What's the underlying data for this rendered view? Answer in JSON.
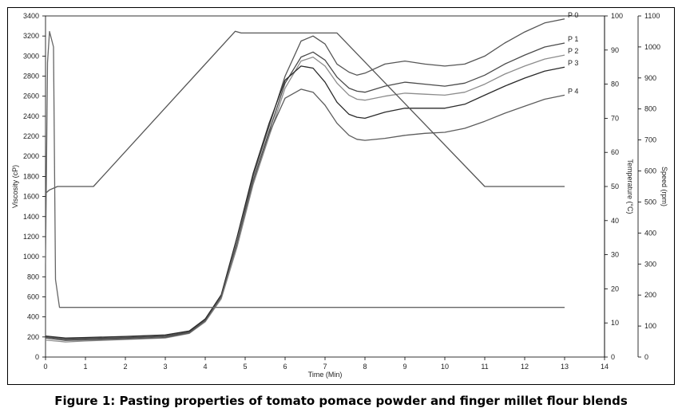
{
  "figure": {
    "caption": "Figure 1: Pasting properties of tomato pomace powder and finger millet flour blends"
  },
  "chart_data": {
    "type": "line",
    "xlabel": "Time (Min)",
    "ylabel": "Viscosity (cP)",
    "ylabel_temp": "Temperature (°C)",
    "ylabel_speed": "Speed (rpm)",
    "xlim": [
      0,
      14
    ],
    "ylim": [
      0,
      3400
    ],
    "ylim_temp": [
      0,
      100
    ],
    "ylim_speed": [
      0,
      1100
    ],
    "x_ticks": [
      0,
      1,
      2,
      3,
      4,
      5,
      6,
      7,
      8,
      9,
      10,
      11,
      12,
      13,
      14
    ],
    "y_ticks": [
      0,
      200,
      400,
      600,
      800,
      1000,
      1200,
      1400,
      1600,
      1800,
      2000,
      2200,
      2400,
      2600,
      2800,
      3000,
      3200,
      3400
    ],
    "temp_ticks": [
      0,
      10,
      20,
      30,
      40,
      50,
      60,
      70,
      80,
      90,
      100
    ],
    "speed_ticks": [
      0,
      100,
      200,
      300,
      400,
      500,
      600,
      700,
      800,
      900,
      1000,
      1100
    ],
    "grid": false,
    "legend": "line-end labels",
    "colors": {
      "P 0": "#555555",
      "P 1": "#4a4a4a",
      "P 2": "#8c8c8c",
      "P 3": "#2a2a2a",
      "P 4": "#5c5c5c",
      "temperature": "#555555",
      "speed": "#666666"
    },
    "series": [
      {
        "name": "P 0",
        "axis": "viscosity",
        "x": [
          0,
          0.5,
          1,
          2,
          3,
          3.6,
          4,
          4.4,
          4.8,
          5.2,
          5.6,
          6,
          6.4,
          6.7,
          7,
          7.3,
          7.6,
          7.8,
          8,
          8.5,
          9,
          9.5,
          10,
          10.5,
          11,
          11.5,
          12,
          12.5,
          13
        ],
        "y": [
          200,
          180,
          185,
          195,
          210,
          250,
          370,
          600,
          1150,
          1800,
          2300,
          2800,
          3150,
          3200,
          3120,
          2920,
          2840,
          2810,
          2830,
          2920,
          2950,
          2920,
          2900,
          2920,
          3000,
          3130,
          3240,
          3330,
          3370
        ]
      },
      {
        "name": "P 1",
        "axis": "viscosity",
        "x": [
          0,
          0.5,
          1,
          2,
          3,
          3.6,
          4,
          4.4,
          4.8,
          5.2,
          5.6,
          6,
          6.4,
          6.7,
          7,
          7.3,
          7.6,
          7.8,
          8,
          8.5,
          9,
          9.5,
          10,
          10.5,
          11,
          11.5,
          12,
          12.5,
          13
        ],
        "y": [
          190,
          170,
          180,
          190,
          205,
          245,
          360,
          590,
          1120,
          1760,
          2250,
          2730,
          2990,
          3040,
          2960,
          2790,
          2680,
          2650,
          2640,
          2700,
          2740,
          2720,
          2700,
          2730,
          2810,
          2920,
          3010,
          3090,
          3130
        ]
      },
      {
        "name": "P 2",
        "axis": "viscosity",
        "x": [
          0,
          0.5,
          1,
          2,
          3,
          3.6,
          4,
          4.4,
          4.8,
          5.2,
          5.6,
          6,
          6.4,
          6.7,
          7,
          7.3,
          7.6,
          7.8,
          8,
          8.5,
          9,
          9.5,
          10,
          10.5,
          11,
          11.5,
          12,
          12.5,
          13
        ],
        "y": [
          170,
          150,
          160,
          175,
          190,
          235,
          350,
          580,
          1100,
          1720,
          2200,
          2680,
          2950,
          2990,
          2900,
          2730,
          2610,
          2570,
          2560,
          2600,
          2630,
          2620,
          2610,
          2640,
          2720,
          2820,
          2900,
          2970,
          3010
        ]
      },
      {
        "name": "P 3",
        "axis": "viscosity",
        "x": [
          0,
          0.5,
          1,
          2,
          3,
          3.6,
          4,
          4.4,
          4.8,
          5.2,
          5.6,
          6,
          6.4,
          6.7,
          7,
          7.3,
          7.6,
          7.8,
          8,
          8.5,
          9,
          9.5,
          10,
          10.5,
          11,
          11.5,
          12,
          12.5,
          13
        ],
        "y": [
          210,
          190,
          195,
          205,
          220,
          260,
          380,
          620,
          1200,
          1830,
          2330,
          2760,
          2900,
          2880,
          2740,
          2540,
          2420,
          2390,
          2380,
          2440,
          2480,
          2480,
          2480,
          2520,
          2610,
          2700,
          2780,
          2850,
          2890
        ]
      },
      {
        "name": "P 4",
        "axis": "viscosity",
        "x": [
          0,
          0.5,
          1,
          2,
          3,
          3.6,
          4,
          4.4,
          4.8,
          5.2,
          5.6,
          6,
          6.4,
          6.7,
          7,
          7.3,
          7.6,
          7.8,
          8,
          8.5,
          9,
          9.5,
          10,
          10.5,
          11,
          11.5,
          12,
          12.5,
          13
        ],
        "y": [
          190,
          165,
          170,
          180,
          195,
          240,
          360,
          600,
          1150,
          1750,
          2230,
          2580,
          2670,
          2640,
          2510,
          2330,
          2210,
          2170,
          2160,
          2180,
          2210,
          2230,
          2240,
          2280,
          2350,
          2430,
          2500,
          2570,
          2610
        ]
      },
      {
        "name": "temperature",
        "axis": "temperature",
        "x": [
          0,
          0.1,
          0.3,
          1,
          1.2,
          4.75,
          4.9,
          5.2,
          6.5,
          7.3,
          11,
          13
        ],
        "y": [
          48,
          49,
          50,
          50,
          50,
          95.5,
          95,
          95,
          95,
          95,
          50,
          50
        ]
      },
      {
        "name": "speed",
        "axis": "speed",
        "x": [
          0,
          0.05,
          0.1,
          0.2,
          0.25,
          0.35,
          13
        ],
        "y": [
          300,
          950,
          1050,
          1000,
          250,
          160,
          160
        ]
      }
    ]
  }
}
